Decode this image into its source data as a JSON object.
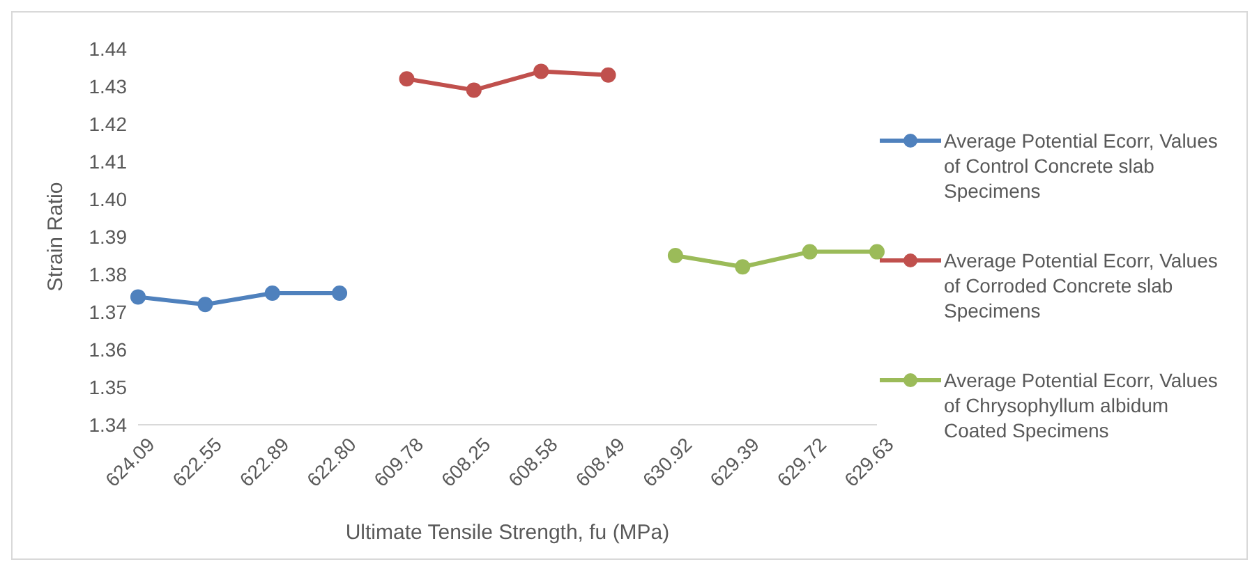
{
  "chart_data": {
    "type": "line",
    "xlabel": "Ultimate Tensile Strength, fu (MPa)",
    "ylabel": "Strain Ratio",
    "categories": [
      "624.09",
      "622.55",
      "622.89",
      "622.80",
      "609.78",
      "608.25",
      "608.58",
      "608.49",
      "630.92",
      "629.39",
      "629.72",
      "629.63"
    ],
    "series": [
      {
        "name": "Average Potential  Ecorr, Values of  Control  Concrete slab Specimens",
        "color": "#4f81bd",
        "values": [
          1.374,
          1.372,
          1.375,
          1.375,
          null,
          null,
          null,
          null,
          null,
          null,
          null,
          null
        ]
      },
      {
        "name": "Average Potential  Ecorr, Values of  Corroded Concrete slab Specimens",
        "color": "#c0504d",
        "values": [
          null,
          null,
          null,
          null,
          1.432,
          1.429,
          1.434,
          1.433,
          null,
          null,
          null,
          null
        ]
      },
      {
        "name": "Average Potential  Ecorr, Values of Chrysophyllum albidum Coated Specimens",
        "color": "#9bbb59",
        "values": [
          null,
          null,
          null,
          null,
          null,
          null,
          null,
          null,
          1.385,
          1.382,
          1.386,
          1.386
        ]
      }
    ],
    "ylim": [
      1.34,
      1.44
    ],
    "yticks": [
      1.34,
      1.35,
      1.36,
      1.37,
      1.38,
      1.39,
      {
        "value": 1.4,
        "label": "1.40"
      },
      1.41,
      1.42,
      1.43,
      1.44
    ],
    "grid": false,
    "legend": "right",
    "marker": "circle",
    "line_style": "solid"
  }
}
